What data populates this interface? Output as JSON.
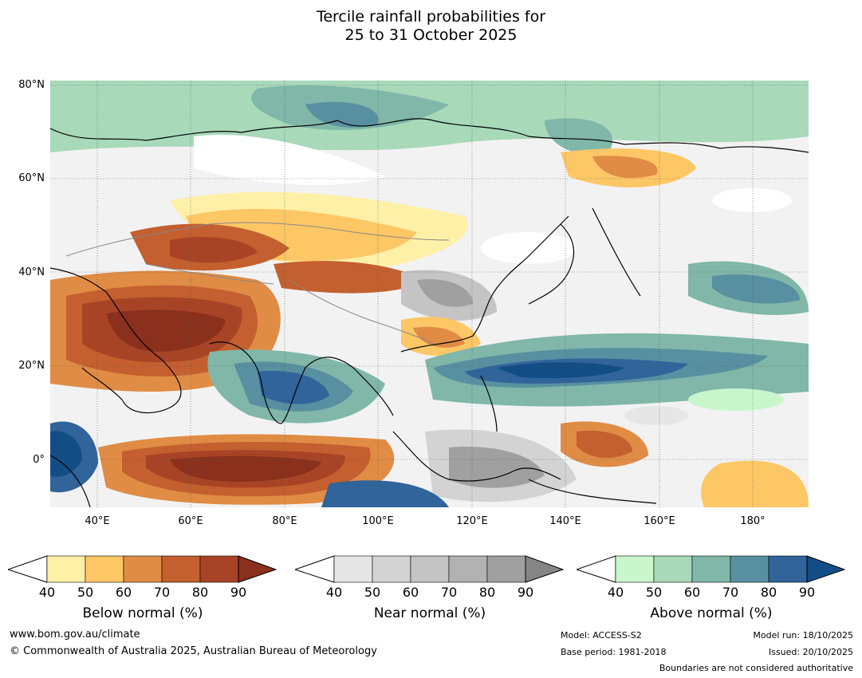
{
  "title": {
    "line1": "Tercile rainfall probabilities for",
    "line2": "25 to 31 October 2025"
  },
  "axes": {
    "lat_labels": [
      "80°N",
      "60°N",
      "40°N",
      "20°N",
      "0°"
    ],
    "lon_labels": [
      "40°E",
      "60°E",
      "80°E",
      "100°E",
      "120°E",
      "140°E",
      "160°E",
      "180°"
    ]
  },
  "colors": {
    "below": [
      "#fff0a8",
      "#fdc765",
      "#e08c45",
      "#c45f2f",
      "#a84426",
      "#8a301c"
    ],
    "near": [
      "#e6e6e6",
      "#d3d3d3",
      "#c4c4c4",
      "#b2b2b2",
      "#a0a0a0",
      "#858585"
    ],
    "above": [
      "#c9f7cb",
      "#a8d9b9",
      "#80b7a9",
      "#5890a1",
      "#30649a",
      "#134d86"
    ],
    "ocean_white": "#ffffff",
    "coast": "#000000",
    "boundary": "#888888"
  },
  "colorbars": {
    "tick_values": [
      "40",
      "50",
      "60",
      "70",
      "80",
      "90"
    ],
    "below_label": "Below normal (%)",
    "near_label": "Near normal (%)",
    "above_label": "Above normal (%)"
  },
  "footer": {
    "url": "www.bom.gov.au/climate",
    "copyright": "© Commonwealth of Australia 2025, Australian Bureau of Meteorology",
    "model": "Model: ACCESS-S2",
    "base_period": "Base period: 1981-2018",
    "model_run": "Model run: 18/10/2025",
    "issued": "Issued: 20/10/2025",
    "disclaimer": "Boundaries are not considered authoritative"
  }
}
